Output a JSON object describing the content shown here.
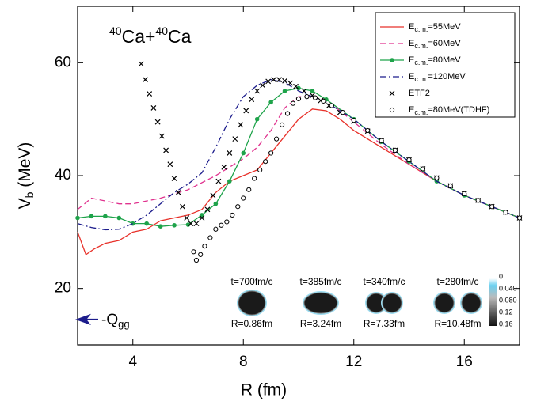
{
  "chart_data": {
    "type": "line",
    "title": {
      "sup1": "40",
      "a": "Ca+",
      "sup2": "40",
      "b": "Ca"
    },
    "x_label": "R (fm)",
    "y_label": {
      "text": "V",
      "sub": "b",
      "after": " (MeV)"
    },
    "xlim": [
      2,
      18
    ],
    "ylim": [
      10,
      70
    ],
    "xticks": [
      4,
      8,
      12,
      16
    ],
    "yticks": [
      20,
      40,
      60
    ],
    "legend": "upper right",
    "series": [
      {
        "name": {
          "text": "E",
          "sub": "c.m.",
          "after": "=55MeV"
        },
        "color": "#e8312a",
        "style": "solid",
        "x": [
          2,
          2.3,
          2.6,
          3,
          3.5,
          4,
          4.5,
          5,
          5.5,
          6,
          6.5,
          7,
          7.5,
          8,
          8.5,
          9,
          9.5,
          10,
          10.5,
          11,
          11.5,
          12,
          13,
          14,
          15,
          16,
          17,
          18
        ],
        "values": [
          30,
          26,
          27,
          28,
          28.5,
          30,
          30.5,
          32,
          32.5,
          33,
          34,
          37,
          39,
          40,
          41,
          44,
          47,
          50,
          51.8,
          51.5,
          50,
          48,
          45,
          42,
          39,
          36.5,
          34.5,
          32.5
        ]
      },
      {
        "name": {
          "text": "E",
          "sub": "c.m.",
          "after": "=60MeV"
        },
        "color": "#e0338f",
        "style": "dashed",
        "x": [
          2,
          2.5,
          3,
          3.5,
          4,
          5,
          6,
          7,
          8,
          8.5,
          9,
          9.5,
          10,
          10.5,
          11,
          12,
          13,
          14,
          15,
          16,
          17,
          18
        ],
        "values": [
          34,
          36,
          35.5,
          35,
          35,
          36,
          37.5,
          40,
          43,
          45,
          48,
          52,
          54,
          54,
          53.5,
          49.5,
          45.5,
          42,
          39,
          36.5,
          34.5,
          32.5
        ]
      },
      {
        "name": {
          "text": "E",
          "sub": "c.m.",
          "after": "=80MeV"
        },
        "color": "#1ea34a",
        "style": "dots",
        "x": [
          2,
          2.5,
          3,
          3.5,
          4,
          4.5,
          5,
          5.5,
          6,
          6.5,
          7,
          7.5,
          8,
          8.5,
          9,
          9.5,
          10,
          10.5,
          11,
          12,
          13,
          14,
          15,
          16,
          17,
          18
        ],
        "values": [
          32.5,
          32.8,
          32.8,
          32.5,
          31.5,
          31.5,
          31,
          31.2,
          31.3,
          33,
          35,
          39,
          44,
          50,
          53,
          55,
          55.5,
          55,
          53.5,
          50,
          46,
          42.5,
          39,
          36.5,
          34.5,
          32.5
        ]
      },
      {
        "name": {
          "text": "E",
          "sub": "c.m.",
          "after": "=120MeV"
        },
        "color": "#1c1c8c",
        "style": "dashdot",
        "x": [
          2,
          2.5,
          3,
          3.5,
          4,
          4.5,
          5,
          5.5,
          6,
          6.5,
          7,
          7.5,
          8,
          8.5,
          9,
          9.5,
          10,
          11,
          12,
          13,
          14,
          15,
          16,
          17,
          18
        ],
        "values": [
          31.5,
          30.8,
          30.4,
          30.5,
          31.5,
          33,
          35,
          37,
          38.5,
          40.5,
          45,
          50,
          54,
          56,
          57,
          56.5,
          55,
          53,
          50,
          46,
          42.5,
          39,
          36.5,
          34.5,
          32.5
        ]
      },
      {
        "name": {
          "text": "ETF2"
        },
        "color": "#000000",
        "style": "cross",
        "x": [
          4.3,
          4.45,
          4.6,
          4.75,
          4.9,
          5.05,
          5.2,
          5.35,
          5.5,
          5.65,
          5.8,
          5.95,
          6.1,
          6.3,
          6.5,
          6.7,
          6.9,
          7.1,
          7.3,
          7.5,
          7.7,
          7.9,
          8.1,
          8.3,
          8.5,
          8.7,
          8.9,
          9.1,
          9.3,
          9.5,
          9.7,
          9.9,
          10.2,
          10.5,
          10.8,
          11.1,
          11.5,
          12,
          12.5,
          13,
          13.5,
          14,
          14.5,
          15,
          15.5,
          16,
          16.5,
          17,
          17.5,
          18
        ],
        "values": [
          59.8,
          57,
          54.5,
          52,
          49.5,
          47,
          44.5,
          42,
          39.5,
          37,
          34.5,
          32.5,
          31.5,
          31.5,
          32.5,
          34,
          36.5,
          39,
          41.5,
          44,
          46.5,
          49,
          51.5,
          53.5,
          55,
          56,
          56.7,
          57,
          57,
          56.8,
          56.4,
          55.8,
          55,
          54.2,
          53.3,
          52.4,
          51.2,
          49.6,
          47.9,
          46.2,
          44.5,
          42.8,
          41.2,
          39.6,
          38.2,
          36.8,
          35.6,
          34.5,
          33.5,
          32.5
        ]
      },
      {
        "name": {
          "text": "E",
          "sub": "c.m.",
          "after": "=80MeV(TDHF)"
        },
        "color": "#000000",
        "style": "circle",
        "x": [
          6.2,
          6.3,
          6.45,
          6.6,
          6.8,
          7,
          7.2,
          7.4,
          7.6,
          7.8,
          8,
          8.2,
          8.4,
          8.6,
          8.8,
          9,
          9.2,
          9.4,
          9.6,
          9.8,
          10,
          10.3,
          10.6,
          10.9,
          11.2,
          11.6,
          12,
          12.5,
          13,
          13.5,
          14,
          14.5,
          15,
          15.5,
          16,
          16.5,
          17,
          17.5,
          18
        ],
        "values": [
          26.5,
          25,
          26,
          27.5,
          29,
          30.5,
          31.2,
          31.8,
          33,
          34.5,
          36,
          37.5,
          39.5,
          41,
          42.5,
          44,
          46.5,
          49,
          51,
          52.8,
          53.6,
          54,
          53.8,
          53.2,
          52.4,
          51.2,
          49.8,
          48,
          46.2,
          44.5,
          42.8,
          41.2,
          39.6,
          38.2,
          36.8,
          35.6,
          34.5,
          33.5,
          32.5
        ]
      }
    ],
    "qgg": {
      "text": "-Q",
      "sub": "gg",
      "value": 14.5
    },
    "snapshots": [
      {
        "time": "t=700fm/c",
        "distance": "R=0.86fm"
      },
      {
        "time": "t=385fm/c",
        "distance": "R=3.24fm"
      },
      {
        "time": "t=340fm/c",
        "distance": "R=7.33fm"
      },
      {
        "time": "t=280fm/c",
        "distance": "R=10.48fm"
      }
    ],
    "colorbar_ticks": [
      "0",
      "0.040",
      "0.080",
      "0.12",
      "0.16"
    ]
  }
}
